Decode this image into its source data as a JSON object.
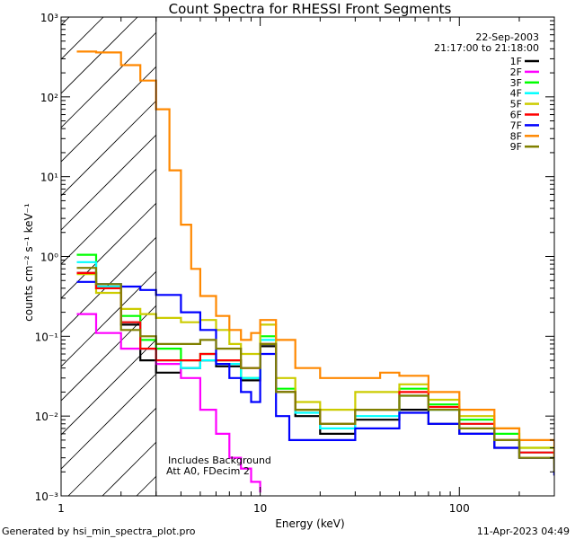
{
  "chart_data": {
    "type": "line",
    "title": "Count Spectra for RHESSI Front Segments",
    "xlabel": "Energy (keV)",
    "ylabel": "counts cm⁻² s⁻¹ keV⁻¹",
    "xscale": "log",
    "yscale": "log",
    "xlim": [
      1,
      300
    ],
    "ylim": [
      0.001,
      1000
    ],
    "x_ticks": [
      {
        "value": 1,
        "label": "1"
      },
      {
        "value": 10,
        "label": "10"
      },
      {
        "value": 100,
        "label": "100"
      }
    ],
    "y_ticks": [
      {
        "value": 1000,
        "label": "10³"
      },
      {
        "value": 100,
        "label": "10²"
      },
      {
        "value": 10,
        "label": "10¹"
      },
      {
        "value": 1,
        "label": "10⁰"
      },
      {
        "value": 0.1,
        "label": "10⁻¹"
      },
      {
        "value": 0.01,
        "label": "10⁻²"
      },
      {
        "value": 0.001,
        "label": "10⁻³"
      }
    ],
    "threshold_energy": 3,
    "legend": {
      "position": "top-right",
      "date": "22-Sep-2003",
      "time_range": "21:17:00 to 21:18:00"
    },
    "annotations": [
      "Includes Background",
      "Att A0, FDecim 2"
    ],
    "footer_left": "Generated by hsi_min_spectra_plot.pro",
    "footer_right": "11-Apr-2023 04:49",
    "series": [
      {
        "name": "1F",
        "color": "#000000",
        "points": [
          [
            1.2,
            0.62
          ],
          [
            1.5,
            0.4
          ],
          [
            2.0,
            0.14
          ],
          [
            2.5,
            0.05
          ],
          [
            3.0,
            0.035
          ],
          [
            4.0,
            0.04
          ],
          [
            5.0,
            0.05
          ],
          [
            6.0,
            0.042
          ],
          [
            8.0,
            0.028
          ],
          [
            10.0,
            0.075
          ],
          [
            12.0,
            0.02
          ],
          [
            15.0,
            0.01
          ],
          [
            20.0,
            0.006
          ],
          [
            30.0,
            0.009
          ],
          [
            50.0,
            0.012
          ],
          [
            70.0,
            0.008
          ],
          [
            100.0,
            0.006
          ],
          [
            150.0,
            0.004
          ],
          [
            200.0,
            0.003
          ],
          [
            300.0,
            0.0018
          ]
        ]
      },
      {
        "name": "2F",
        "color": "#ff00ff",
        "points": [
          [
            1.2,
            0.19
          ],
          [
            1.5,
            0.11
          ],
          [
            2.0,
            0.07
          ],
          [
            3.0,
            0.045
          ],
          [
            4.0,
            0.03
          ],
          [
            5.0,
            0.012
          ],
          [
            6.0,
            0.006
          ],
          [
            7.0,
            0.003
          ],
          [
            8.0,
            0.0022
          ],
          [
            9.0,
            0.0015
          ],
          [
            10.0,
            0.0011
          ]
        ]
      },
      {
        "name": "3F",
        "color": "#00ff00",
        "points": [
          [
            1.2,
            1.05
          ],
          [
            1.5,
            0.45
          ],
          [
            2.0,
            0.18
          ],
          [
            2.5,
            0.09
          ],
          [
            3.0,
            0.07
          ],
          [
            4.0,
            0.05
          ],
          [
            5.0,
            0.06
          ],
          [
            6.0,
            0.05
          ],
          [
            8.0,
            0.03
          ],
          [
            10.0,
            0.1
          ],
          [
            12.0,
            0.022
          ],
          [
            15.0,
            0.012
          ],
          [
            20.0,
            0.008
          ],
          [
            30.0,
            0.012
          ],
          [
            50.0,
            0.022
          ],
          [
            70.0,
            0.014
          ],
          [
            100.0,
            0.009
          ],
          [
            150.0,
            0.006
          ],
          [
            200.0,
            0.004
          ],
          [
            300.0,
            0.0025
          ]
        ]
      },
      {
        "name": "4F",
        "color": "#00ffff",
        "points": [
          [
            1.2,
            0.85
          ],
          [
            1.5,
            0.42
          ],
          [
            2.0,
            0.15
          ],
          [
            2.5,
            0.07
          ],
          [
            3.0,
            0.05
          ],
          [
            4.0,
            0.04
          ],
          [
            5.0,
            0.05
          ],
          [
            6.0,
            0.045
          ],
          [
            8.0,
            0.03
          ],
          [
            10.0,
            0.09
          ],
          [
            12.0,
            0.02
          ],
          [
            15.0,
            0.011
          ],
          [
            20.0,
            0.007
          ],
          [
            30.0,
            0.01
          ],
          [
            50.0,
            0.018
          ],
          [
            70.0,
            0.012
          ],
          [
            100.0,
            0.008
          ],
          [
            150.0,
            0.005
          ],
          [
            200.0,
            0.0035
          ],
          [
            300.0,
            0.0022
          ]
        ]
      },
      {
        "name": "5F",
        "color": "#cccc00",
        "points": [
          [
            1.2,
            0.6
          ],
          [
            1.5,
            0.35
          ],
          [
            2.0,
            0.22
          ],
          [
            2.5,
            0.19
          ],
          [
            3.0,
            0.17
          ],
          [
            4.0,
            0.15
          ],
          [
            5.0,
            0.16
          ],
          [
            6.0,
            0.12
          ],
          [
            7.0,
            0.08
          ],
          [
            8.0,
            0.06
          ],
          [
            10.0,
            0.14
          ],
          [
            12.0,
            0.03
          ],
          [
            15.0,
            0.015
          ],
          [
            20.0,
            0.012
          ],
          [
            30.0,
            0.02
          ],
          [
            50.0,
            0.025
          ],
          [
            70.0,
            0.016
          ],
          [
            100.0,
            0.01
          ],
          [
            150.0,
            0.007
          ],
          [
            200.0,
            0.004
          ],
          [
            300.0,
            0.0028
          ]
        ]
      },
      {
        "name": "6F",
        "color": "#ff0000",
        "points": [
          [
            1.2,
            0.62
          ],
          [
            1.5,
            0.4
          ],
          [
            2.0,
            0.15
          ],
          [
            2.5,
            0.07
          ],
          [
            3.0,
            0.05
          ],
          [
            4.0,
            0.05
          ],
          [
            5.0,
            0.06
          ],
          [
            6.0,
            0.05
          ],
          [
            8.0,
            0.04
          ],
          [
            10.0,
            0.08
          ],
          [
            12.0,
            0.02
          ],
          [
            15.0,
            0.012
          ],
          [
            20.0,
            0.008
          ],
          [
            30.0,
            0.012
          ],
          [
            50.0,
            0.02
          ],
          [
            70.0,
            0.013
          ],
          [
            100.0,
            0.008
          ],
          [
            150.0,
            0.005
          ],
          [
            200.0,
            0.0035
          ],
          [
            300.0,
            0.0022
          ]
        ]
      },
      {
        "name": "7F",
        "color": "#0000ff",
        "points": [
          [
            1.2,
            0.48
          ],
          [
            1.5,
            0.45
          ],
          [
            2.0,
            0.42
          ],
          [
            2.5,
            0.38
          ],
          [
            3.0,
            0.33
          ],
          [
            4.0,
            0.2
          ],
          [
            5.0,
            0.12
          ],
          [
            6.0,
            0.045
          ],
          [
            7.0,
            0.03
          ],
          [
            8.0,
            0.02
          ],
          [
            9.0,
            0.015
          ],
          [
            10.0,
            0.06
          ],
          [
            12.0,
            0.01
          ],
          [
            14.0,
            0.005
          ],
          [
            20.0,
            0.005
          ],
          [
            30.0,
            0.007
          ],
          [
            50.0,
            0.011
          ],
          [
            70.0,
            0.008
          ],
          [
            100.0,
            0.006
          ],
          [
            150.0,
            0.004
          ],
          [
            200.0,
            0.003
          ],
          [
            300.0,
            0.0018
          ]
        ]
      },
      {
        "name": "8F",
        "color": "#ff8800",
        "points": [
          [
            1.2,
            370
          ],
          [
            1.5,
            360
          ],
          [
            2.0,
            250
          ],
          [
            2.5,
            160
          ],
          [
            3.0,
            70
          ],
          [
            3.5,
            12
          ],
          [
            4.0,
            2.5
          ],
          [
            4.5,
            0.7
          ],
          [
            5.0,
            0.32
          ],
          [
            6.0,
            0.18
          ],
          [
            7.0,
            0.12
          ],
          [
            8.0,
            0.09
          ],
          [
            9.0,
            0.11
          ],
          [
            10.0,
            0.16
          ],
          [
            12.0,
            0.09
          ],
          [
            15.0,
            0.04
          ],
          [
            20.0,
            0.03
          ],
          [
            30.0,
            0.03
          ],
          [
            40.0,
            0.035
          ],
          [
            50.0,
            0.032
          ],
          [
            70.0,
            0.02
          ],
          [
            100.0,
            0.012
          ],
          [
            150.0,
            0.007
          ],
          [
            200.0,
            0.005
          ],
          [
            300.0,
            0.0025
          ]
        ]
      },
      {
        "name": "9F",
        "color": "#808000",
        "points": [
          [
            1.2,
            0.72
          ],
          [
            1.5,
            0.45
          ],
          [
            2.0,
            0.12
          ],
          [
            2.5,
            0.1
          ],
          [
            3.0,
            0.08
          ],
          [
            4.0,
            0.08
          ],
          [
            5.0,
            0.09
          ],
          [
            6.0,
            0.07
          ],
          [
            8.0,
            0.04
          ],
          [
            10.0,
            0.08
          ],
          [
            12.0,
            0.02
          ],
          [
            15.0,
            0.012
          ],
          [
            20.0,
            0.008
          ],
          [
            30.0,
            0.012
          ],
          [
            50.0,
            0.018
          ],
          [
            70.0,
            0.012
          ],
          [
            100.0,
            0.007
          ],
          [
            150.0,
            0.005
          ],
          [
            200.0,
            0.003
          ],
          [
            300.0,
            0.002
          ]
        ]
      }
    ]
  }
}
